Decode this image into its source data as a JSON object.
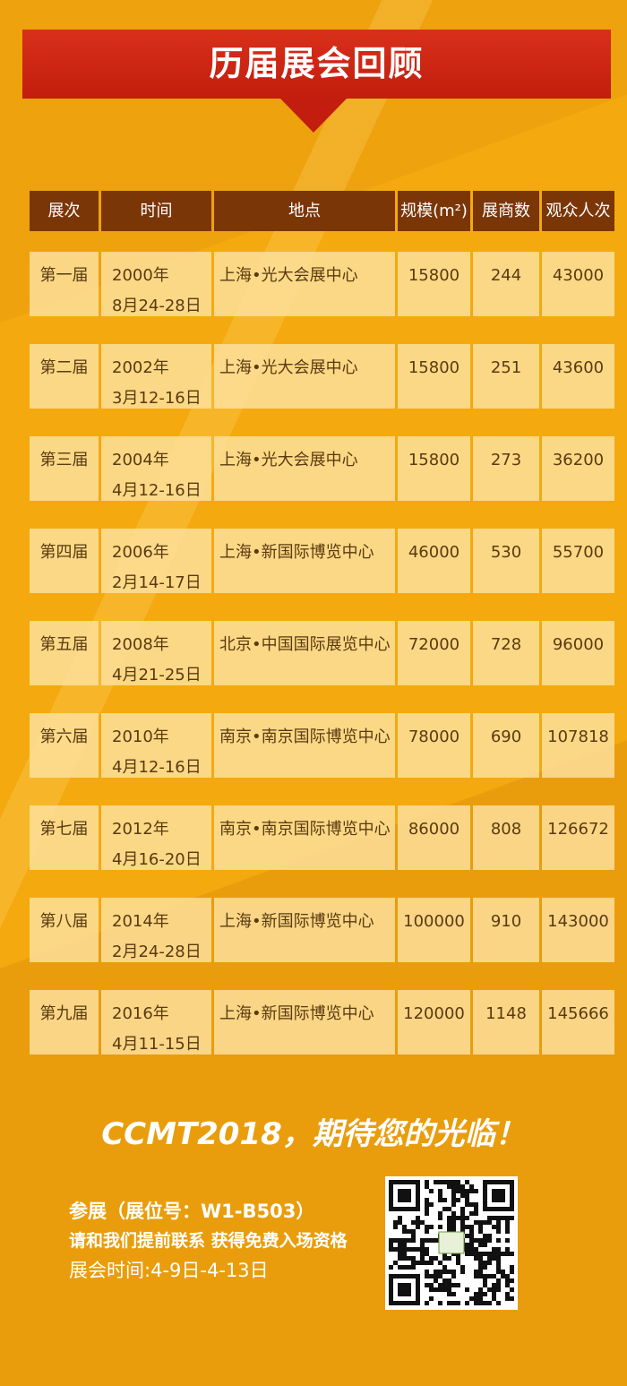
{
  "header": {
    "title": "历届展会回顾"
  },
  "table": {
    "columns": [
      "展次",
      "时间",
      "地点",
      "规模(m²)",
      "展商数",
      "观众人次"
    ],
    "rows": [
      {
        "edition": "第一届",
        "year": "2000年",
        "dates": "8月24-28日",
        "venue": "上海•光大会展中心",
        "area": 15800,
        "exhibitors": 244,
        "visitors": 43000
      },
      {
        "edition": "第二届",
        "year": "2002年",
        "dates": "3月12-16日",
        "venue": "上海•光大会展中心",
        "area": 15800,
        "exhibitors": 251,
        "visitors": 43600
      },
      {
        "edition": "第三届",
        "year": "2004年",
        "dates": "4月12-16日",
        "venue": "上海•光大会展中心",
        "area": 15800,
        "exhibitors": 273,
        "visitors": 36200
      },
      {
        "edition": "第四届",
        "year": "2006年",
        "dates": "2月14-17日",
        "venue": "上海•新国际博览中心",
        "area": 46000,
        "exhibitors": 530,
        "visitors": 55700
      },
      {
        "edition": "第五届",
        "year": "2008年",
        "dates": "4月21-25日",
        "venue": "北京•中国国际展览中心",
        "area": 72000,
        "exhibitors": 728,
        "visitors": 96000
      },
      {
        "edition": "第六届",
        "year": "2010年",
        "dates": "4月12-16日",
        "venue": "南京•南京国际博览中心",
        "area": 78000,
        "exhibitors": 690,
        "visitors": 107818
      },
      {
        "edition": "第七届",
        "year": "2012年",
        "dates": "4月16-20日",
        "venue": "南京•南京国际博览中心",
        "area": 86000,
        "exhibitors": 808,
        "visitors": 126672
      },
      {
        "edition": "第八届",
        "year": "2014年",
        "dates": "2月24-28日",
        "venue": "上海•新国际博览中心",
        "area": 100000,
        "exhibitors": 910,
        "visitors": 143000
      },
      {
        "edition": "第九届",
        "year": "2016年",
        "dates": "4月11-15日",
        "venue": "上海•新国际博览中心",
        "area": 120000,
        "exhibitors": 1148,
        "visitors": 145666
      }
    ]
  },
  "footer": {
    "slogan": "CCMT2018，期待您的光临！",
    "booth": "参展（展位号：W1-B503）",
    "contact": "请和我们提前联系 获得免费入场资格",
    "dates": "展会时间:4-9日-4-13日"
  }
}
